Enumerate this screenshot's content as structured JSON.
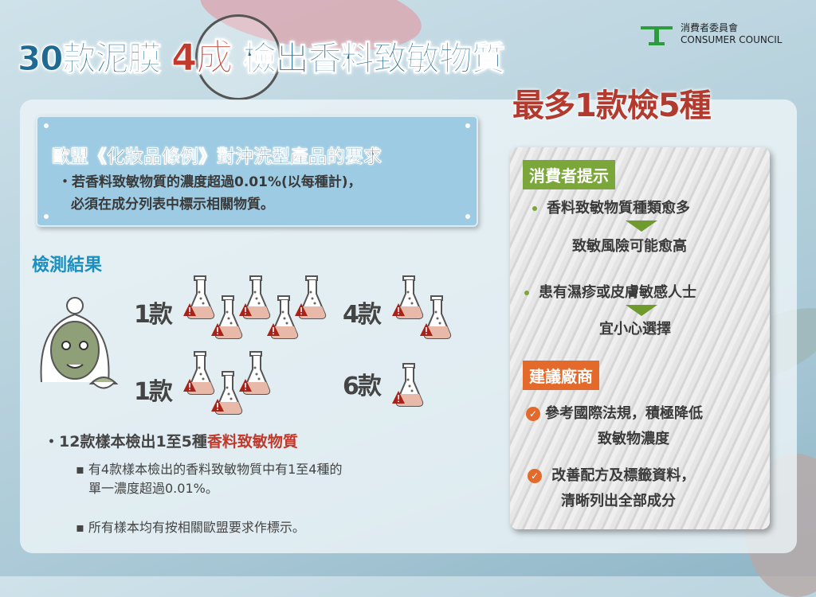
{
  "header": {
    "title_a": "30款泥膜",
    "title_highlight": "4成",
    "title_b": "檢出香料致敏物質",
    "subtitle": "最多1款檢5種"
  },
  "logo": {
    "name_zh": "消費者委員會",
    "name_en": "CONSUMER COUNCIL"
  },
  "eu_box": {
    "title": "歐盟《化妝品條例》對沖洗型產品的要求",
    "line1": "・若香料致敏物質的濃度超過0.01%(以每種計)，",
    "line2": "必須在成分列表中標示相關物質。"
  },
  "results": {
    "heading": "檢測結果",
    "groups": [
      {
        "label": "1款",
        "flasks": 5
      },
      {
        "label": "4款",
        "flasks": 2
      },
      {
        "label": "1款",
        "flasks": 3
      },
      {
        "label": "6款",
        "flasks": 1
      }
    ],
    "summary_a": "・12款樣本檢出1至5種",
    "summary_highlight": "香料致敏物質",
    "detail1_line1": "▪ 有4款樣本檢出的香料致敏物質中有1至4種的",
    "detail1_line2": "單一濃度超過0.01%。",
    "detail2": "▪ 所有樣本均有按相關歐盟要求作標示。"
  },
  "consumer_tips": {
    "tag": "消費者提示",
    "tip1": "香料致敏物質種類愈多",
    "tip1_result": "致敏風險可能愈高",
    "tip2": "患有濕疹或皮膚敏感人士",
    "tip2_result": "宜小心選擇"
  },
  "trader_advice": {
    "tag": "建議廠商",
    "item1_line1": "參考國際法規，積極降低",
    "item1_line2": "致敏物濃度",
    "item2_line1": "改善配方及標籤資料，",
    "item2_line2": "清晰列出全部成分"
  },
  "colors": {
    "title_blue": "#1e6a92",
    "accent_red": "#c0392b",
    "green_tag": "#7aa63a",
    "orange_tag": "#e46a2c"
  }
}
